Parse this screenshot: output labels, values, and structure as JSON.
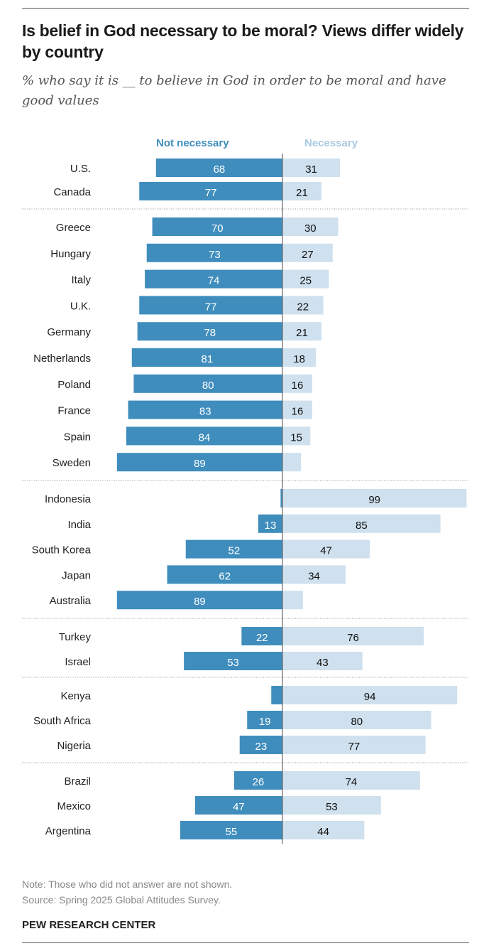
{
  "header": {
    "title": "Is belief in God necessary to be moral? Views differ widely by country",
    "subtitle": "% who say it is __ to believe in God in order to be moral and have good values"
  },
  "footer": {
    "note": "Note: Those who did not answer are not shown.",
    "source": "Source: Spring 2025 Global Attitudes Survey.",
    "brand": "PEW RESEARCH CENTER"
  },
  "colors": {
    "not_necessary": "#3f8dbd",
    "necessary": "#cfe0ee"
  },
  "chart_data": {
    "type": "bar",
    "orientation": "diverging-horizontal",
    "title": "Is belief in God necessary to be moral? Views differ widely by country",
    "subtitle": "% who say it is __ to believe in God in order to be moral and have good values",
    "legend": [
      "Not necessary",
      "Necessary"
    ],
    "legend_placement": "top",
    "xlim": [
      -100,
      100
    ],
    "groups": [
      {
        "rows": [
          {
            "country": "U.S.",
            "not_necessary": 68,
            "necessary": 31,
            "label_not": "68",
            "label_nec": "31"
          },
          {
            "country": "Canada",
            "not_necessary": 77,
            "necessary": 21,
            "label_not": "77",
            "label_nec": "21"
          }
        ]
      },
      {
        "rows": [
          {
            "country": "Greece",
            "not_necessary": 70,
            "necessary": 30,
            "label_not": "70",
            "label_nec": "30"
          },
          {
            "country": "Hungary",
            "not_necessary": 73,
            "necessary": 27,
            "label_not": "73",
            "label_nec": "27"
          },
          {
            "country": "Italy",
            "not_necessary": 74,
            "necessary": 25,
            "label_not": "74",
            "label_nec": "25"
          },
          {
            "country": "U.K.",
            "not_necessary": 77,
            "necessary": 22,
            "label_not": "77",
            "label_nec": "22"
          },
          {
            "country": "Germany",
            "not_necessary": 78,
            "necessary": 21,
            "label_not": "78",
            "label_nec": "21"
          },
          {
            "country": "Netherlands",
            "not_necessary": 81,
            "necessary": 18,
            "label_not": "81",
            "label_nec": "18"
          },
          {
            "country": "Poland",
            "not_necessary": 80,
            "necessary": 16,
            "label_not": "80",
            "label_nec": "16"
          },
          {
            "country": "France",
            "not_necessary": 83,
            "necessary": 16,
            "label_not": "83",
            "label_nec": "16"
          },
          {
            "country": "Spain",
            "not_necessary": 84,
            "necessary": 15,
            "label_not": "84",
            "label_nec": "15"
          },
          {
            "country": "Sweden",
            "not_necessary": 89,
            "necessary": 10,
            "label_not": "89",
            "label_nec": ""
          }
        ]
      },
      {
        "rows": [
          {
            "country": "Indonesia",
            "not_necessary": 1,
            "necessary": 99,
            "label_not": "",
            "label_nec": "99"
          },
          {
            "country": "India",
            "not_necessary": 13,
            "necessary": 85,
            "label_not": "13",
            "label_nec": "85"
          },
          {
            "country": "South Korea",
            "not_necessary": 52,
            "necessary": 47,
            "label_not": "52",
            "label_nec": "47"
          },
          {
            "country": "Japan",
            "not_necessary": 62,
            "necessary": 34,
            "label_not": "62",
            "label_nec": "34"
          },
          {
            "country": "Australia",
            "not_necessary": 89,
            "necessary": 11,
            "label_not": "89",
            "label_nec": ""
          }
        ]
      },
      {
        "rows": [
          {
            "country": "Turkey",
            "not_necessary": 22,
            "necessary": 76,
            "label_not": "22",
            "label_nec": "76"
          },
          {
            "country": "Israel",
            "not_necessary": 53,
            "necessary": 43,
            "label_not": "53",
            "label_nec": "43"
          }
        ]
      },
      {
        "rows": [
          {
            "country": "Kenya",
            "not_necessary": 6,
            "necessary": 94,
            "label_not": "",
            "label_nec": "94"
          },
          {
            "country": "South Africa",
            "not_necessary": 19,
            "necessary": 80,
            "label_not": "19",
            "label_nec": "80"
          },
          {
            "country": "Nigeria",
            "not_necessary": 23,
            "necessary": 77,
            "label_not": "23",
            "label_nec": "77"
          }
        ]
      },
      {
        "rows": [
          {
            "country": "Brazil",
            "not_necessary": 26,
            "necessary": 74,
            "label_not": "26",
            "label_nec": "74"
          },
          {
            "country": "Mexico",
            "not_necessary": 47,
            "necessary": 53,
            "label_not": "47",
            "label_nec": "53"
          },
          {
            "country": "Argentina",
            "not_necessary": 55,
            "necessary": 44,
            "label_not": "55",
            "label_nec": "44"
          }
        ]
      }
    ]
  }
}
